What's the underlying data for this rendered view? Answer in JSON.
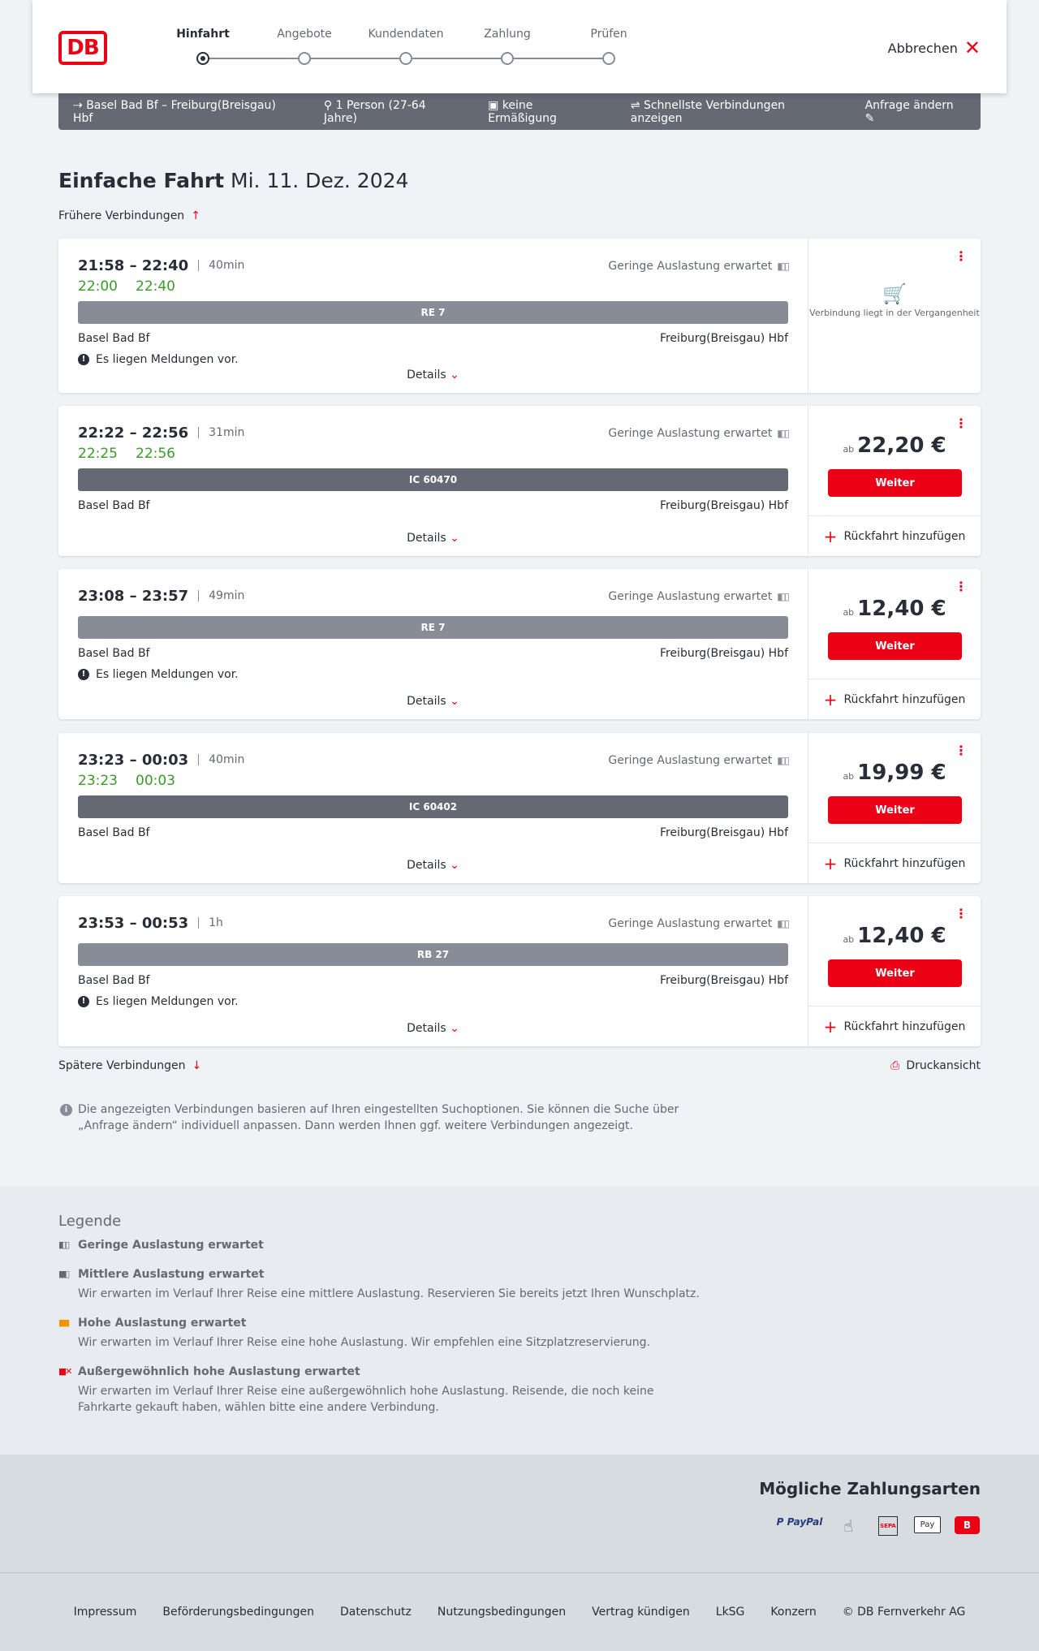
{
  "header": {
    "logo": "DB",
    "steps": [
      "Hinfahrt",
      "Angebote",
      "Kundendaten",
      "Zahlung",
      "Prüfen"
    ],
    "active_step": 0,
    "abort_label": "Abbrechen"
  },
  "search_bar": {
    "route": "Basel Bad Bf – Freiburg(Breisgau) Hbf",
    "passengers": "1 Person (27-64 Jahre)",
    "discount": "keine Ermäßigung",
    "fastest": "Schnellste Verbindungen anzeigen",
    "edit": "Anfrage ändern"
  },
  "title": "Einfache Fahrt",
  "date": "Mi. 11. Dez. 2024",
  "earlier": "Frühere Verbindungen",
  "later": "Spätere Verbindungen",
  "print": "Druckansicht",
  "common": {
    "details": "Details",
    "weiter": "Weiter",
    "return": "Rückfahrt hinzufügen",
    "ab": "ab",
    "past": "Verbindung liegt in der Vergangenheit",
    "message": "Es liegen Meldungen vor."
  },
  "connections": [
    {
      "times": "21:58 – 22:40",
      "duration": "40min",
      "occupancy": "Geringe Auslastung erwartet",
      "realtime": [
        "22:00",
        "22:40"
      ],
      "train": "RE 7",
      "train_color": "#878c96",
      "from": "Basel Bad Bf",
      "to": "Freiburg(Breisgau) Hbf",
      "message": true,
      "past": true,
      "price": null
    },
    {
      "times": "22:22 – 22:56",
      "duration": "31min",
      "occupancy": "Geringe Auslastung erwartet",
      "realtime": [
        "22:25",
        "22:56"
      ],
      "train": "IC 60470",
      "train_color": "#646973",
      "from": "Basel Bad Bf",
      "to": "Freiburg(Breisgau) Hbf",
      "message": false,
      "past": false,
      "price": "22,20 €"
    },
    {
      "times": "23:08 – 23:57",
      "duration": "49min",
      "occupancy": "Geringe Auslastung erwartet",
      "realtime": null,
      "train": "RE 7",
      "train_color": "#878c96",
      "from": "Basel Bad Bf",
      "to": "Freiburg(Breisgau) Hbf",
      "message": true,
      "past": false,
      "price": "12,40 €"
    },
    {
      "times": "23:23 – 00:03",
      "duration": "40min",
      "occupancy": "Geringe Auslastung erwartet",
      "realtime": [
        "23:23",
        "00:03"
      ],
      "train": "IC 60402",
      "train_color": "#646973",
      "from": "Basel Bad Bf",
      "to": "Freiburg(Breisgau) Hbf",
      "message": false,
      "past": false,
      "price": "19,99 €"
    },
    {
      "times": "23:53 – 00:53",
      "duration": "1h",
      "occupancy": "Geringe Auslastung erwartet",
      "realtime": null,
      "train": "RB 27",
      "train_color": "#878c96",
      "from": "Basel Bad Bf",
      "to": "Freiburg(Breisgau) Hbf",
      "message": true,
      "past": false,
      "price": "12,40 €"
    }
  ],
  "info": "Die angezeigten Verbindungen basieren auf Ihren eingestellten Suchoptionen. Sie können die Suche über „Anfrage ändern“ individuell anpassen. Dann werden Ihnen ggf. weitere Verbindungen angezeigt.",
  "legend": {
    "title": "Legende",
    "items": [
      {
        "title": "Geringe Auslastung erwartet",
        "desc": "",
        "color": "#646973"
      },
      {
        "title": "Mittlere Auslastung erwartet",
        "desc": "Wir erwarten im Verlauf Ihrer Reise eine mittlere Auslastung. Reservieren Sie bereits jetzt Ihren Wunschplatz.",
        "color": "#646973"
      },
      {
        "title": "Hohe Auslastung erwartet",
        "desc": "Wir erwarten im Verlauf Ihrer Reise eine hohe Auslastung. Wir empfehlen eine Sitzplatzreservierung.",
        "color": "#f39200"
      },
      {
        "title": "Außergewöhnlich hohe Auslastung erwartet",
        "desc": "Wir erwarten im Verlauf Ihrer Reise eine außergewöhnlich hohe Auslastung. Reisende, die noch keine Fahrkarte gekauft haben, wählen bitte eine andere Verbindung.",
        "color": "#ec0016"
      }
    ]
  },
  "payment": {
    "title": "Mögliche Zahlungsarten",
    "methods": [
      "PayPal",
      "Kreditkarte",
      "SEPA",
      "Apple Pay",
      "DB Bonus"
    ]
  },
  "footer": [
    "Impressum",
    "Beförderungsbedingungen",
    "Datenschutz",
    "Nutzungsbedingungen",
    "Vertrag kündigen",
    "LkSG",
    "Konzern",
    "© DB Fernverkehr AG"
  ],
  "colors": {
    "accent": "#ec0016",
    "realtime": "#3a9a2a",
    "bar": "#646973"
  }
}
